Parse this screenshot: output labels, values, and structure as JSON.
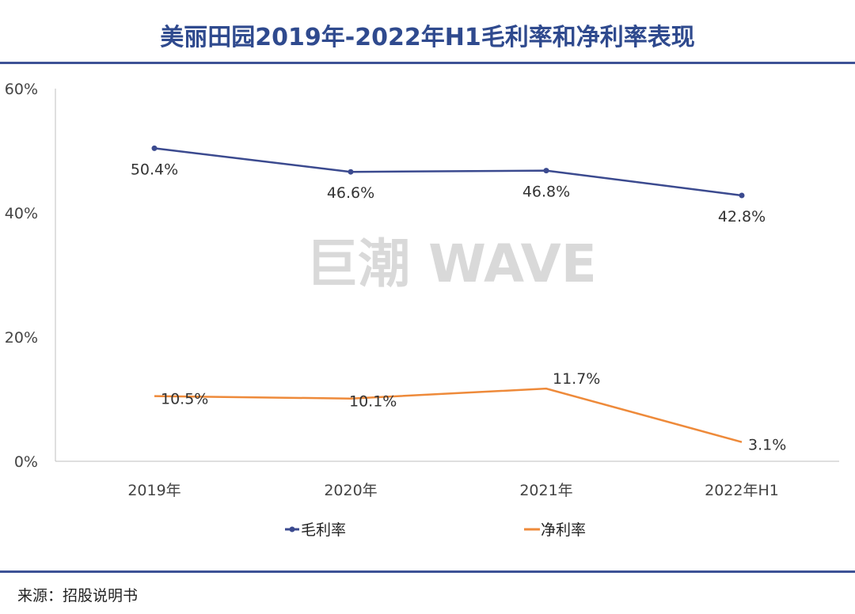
{
  "title": "美丽田园2019年-2022年H1毛利率和净利率表现",
  "source": "来源：招股说明书",
  "watermark": "巨潮 WAVE",
  "colors": {
    "title": "#2f4a8e",
    "gross": "#3b4a8f",
    "net": "#ee8a3a"
  },
  "chart_data": {
    "type": "line",
    "title": "美丽田园2019年-2022年H1毛利率和净利率表现",
    "categories": [
      "2019年",
      "2020年",
      "2021年",
      "2022年H1"
    ],
    "ylim": [
      0,
      60
    ],
    "yticks": [
      "0%",
      "20%",
      "40%",
      "60%"
    ],
    "yticks_values": [
      0,
      20,
      40,
      60
    ],
    "grid": false,
    "legend_position": "bottom",
    "series": [
      {
        "name": "毛利率",
        "values": [
          50.4,
          46.6,
          46.8,
          42.8
        ],
        "labels": [
          "50.4%",
          "46.6%",
          "46.8%",
          "42.8%"
        ],
        "color": "#3b4a8f",
        "markers": true
      },
      {
        "name": "净利率",
        "values": [
          10.5,
          10.1,
          11.7,
          3.1
        ],
        "labels": [
          "10.5%",
          "10.1%",
          "11.7%",
          "3.1%"
        ],
        "color": "#ee8a3a",
        "markers": false
      }
    ]
  }
}
